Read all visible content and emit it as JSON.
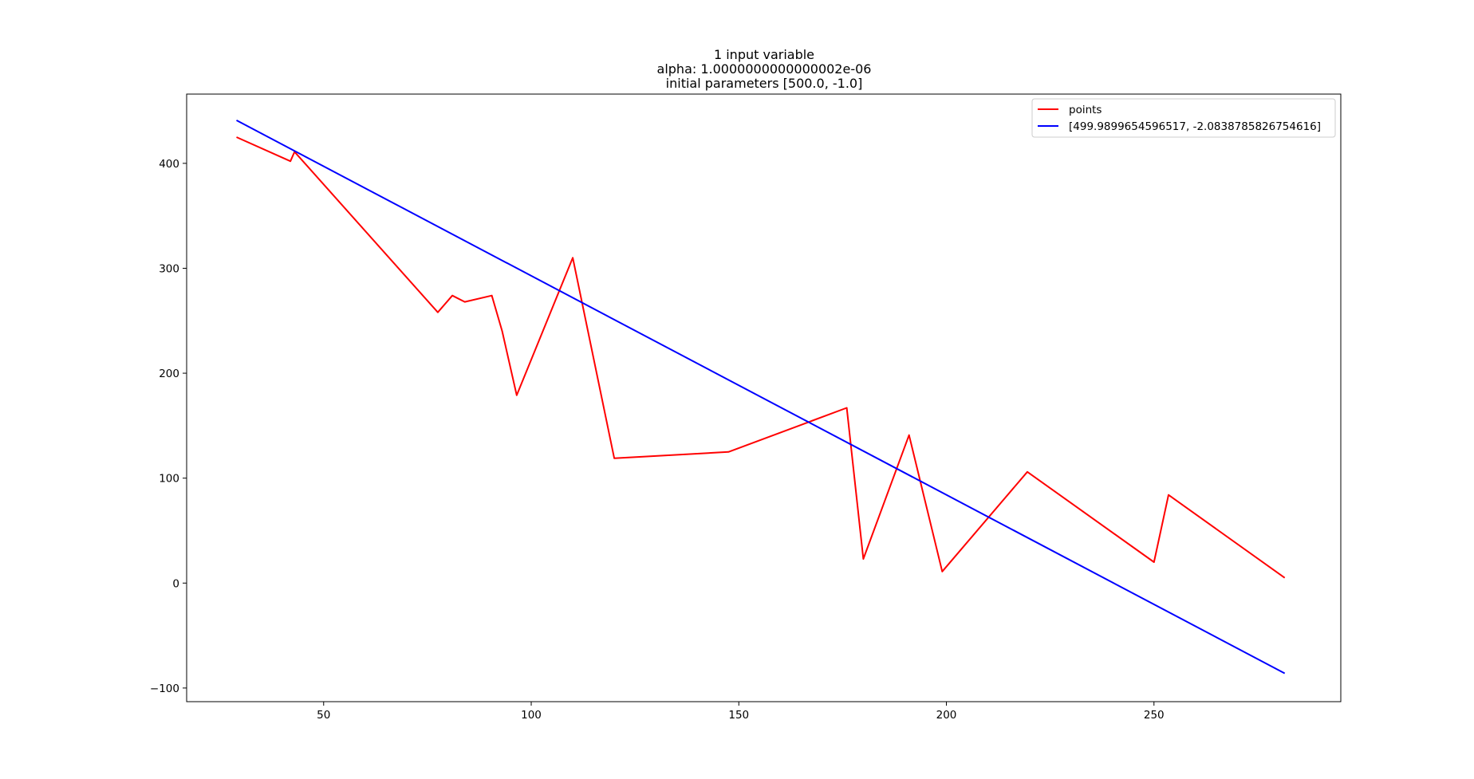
{
  "chart_data": {
    "type": "line",
    "title_lines": [
      "1 input variable",
      "alpha: 1.0000000000000002e-06",
      "initial parameters [500.0, -1.0]"
    ],
    "xlabel": "",
    "ylabel": "",
    "xlim": [
      17,
      295
    ],
    "ylim": [
      -113,
      466
    ],
    "xticks": [
      50,
      100,
      150,
      200,
      250
    ],
    "xtick_labels": [
      "50",
      "100",
      "150",
      "200",
      "250"
    ],
    "yticks": [
      -100,
      0,
      100,
      200,
      300,
      400
    ],
    "ytick_labels": [
      "−100",
      "0",
      "100",
      "200",
      "300",
      "400"
    ],
    "grid": false,
    "legend_position": "top-right",
    "series": [
      {
        "name": "points",
        "color": "#ff0000",
        "x": [
          29,
          42,
          43,
          77.5,
          81,
          84,
          90.5,
          93,
          96.5,
          110,
          120,
          147.5,
          176,
          180,
          191,
          199,
          219.5,
          250,
          253.5,
          281.5
        ],
        "y": [
          425,
          402,
          411,
          258,
          274,
          268,
          274,
          240,
          179,
          310,
          119,
          125,
          167,
          23,
          141,
          11,
          106,
          20,
          84,
          5
        ]
      },
      {
        "name": "[499.9899654596517, -2.0838785826754616]",
        "color": "#0000ff",
        "x": [
          29,
          281.5
        ],
        "y": [
          441,
          -86
        ]
      }
    ]
  }
}
